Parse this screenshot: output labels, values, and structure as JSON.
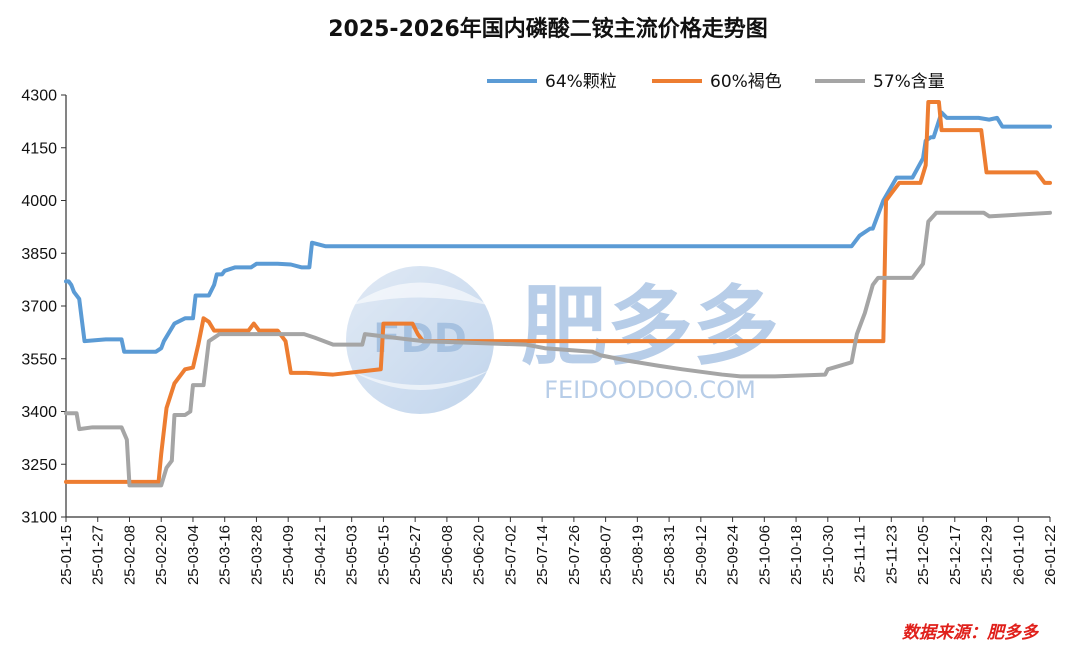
{
  "chart_data": {
    "type": "line",
    "title": "2025-2026年国内磷酸二铵主流价格走势图",
    "xlabel": "",
    "ylabel": "",
    "ylim": [
      3100,
      4300
    ],
    "yticks": [
      3100,
      3250,
      3400,
      3550,
      3700,
      3850,
      4000,
      4150,
      4300
    ],
    "x_start": "2025-01-15",
    "x_end": "2026-01-22",
    "x_tick_labels": [
      "25-01-15",
      "25-01-27",
      "25-02-08",
      "25-02-20",
      "25-03-04",
      "25-03-16",
      "25-03-28",
      "25-04-09",
      "25-04-21",
      "25-05-03",
      "25-05-15",
      "25-05-27",
      "25-06-08",
      "25-06-20",
      "25-07-02",
      "25-07-14",
      "25-07-26",
      "25-08-07",
      "25-08-19",
      "25-08-31",
      "25-09-12",
      "25-09-24",
      "25-10-06",
      "25-10-18",
      "25-10-30",
      "25-11-11",
      "25-11-23",
      "25-12-05",
      "25-12-17",
      "25-12-29",
      "26-01-10",
      "26-01-22"
    ],
    "legend_position": "top-right",
    "grid": false,
    "series": [
      {
        "name": "64%颗粒",
        "color": "#5b9bd5",
        "x": [
          "2025-01-15",
          "2025-01-16",
          "2025-01-17",
          "2025-01-18",
          "2025-01-20",
          "2025-01-21",
          "2025-01-22",
          "2025-01-30",
          "2025-02-05",
          "2025-02-06",
          "2025-02-18",
          "2025-02-20",
          "2025-02-21",
          "2025-02-25",
          "2025-03-01",
          "2025-03-04",
          "2025-03-05",
          "2025-03-10",
          "2025-03-12",
          "2025-03-13",
          "2025-03-15",
          "2025-03-16",
          "2025-03-20",
          "2025-03-26",
          "2025-03-28",
          "2025-04-05",
          "2025-04-10",
          "2025-04-14",
          "2025-04-17",
          "2025-04-18",
          "2025-04-23",
          "2025-11-08",
          "2025-11-11",
          "2025-11-15",
          "2025-11-16",
          "2025-11-20",
          "2025-11-25",
          "2025-11-28",
          "2025-12-01",
          "2025-12-05",
          "2025-12-06",
          "2025-12-08",
          "2025-12-09",
          "2025-12-12",
          "2025-12-14",
          "2025-12-26",
          "2025-12-30",
          "2026-01-02",
          "2026-01-04",
          "2026-01-22"
        ],
        "values": [
          3770,
          3770,
          3760,
          3740,
          3720,
          3660,
          3600,
          3605,
          3605,
          3570,
          3570,
          3580,
          3600,
          3650,
          3665,
          3665,
          3730,
          3730,
          3760,
          3790,
          3790,
          3800,
          3810,
          3810,
          3820,
          3820,
          3818,
          3810,
          3810,
          3880,
          3870,
          3870,
          3900,
          3920,
          3920,
          4000,
          4065,
          4065,
          4065,
          4120,
          4170,
          4180,
          4180,
          4250,
          4235,
          4235,
          4230,
          4235,
          4210,
          4210
        ]
      },
      {
        "name": "60%褐色",
        "color": "#ed7d31",
        "x": [
          "2025-01-15",
          "2025-02-19",
          "2025-02-20",
          "2025-02-22",
          "2025-02-25",
          "2025-03-01",
          "2025-03-04",
          "2025-03-06",
          "2025-03-08",
          "2025-03-10",
          "2025-03-12",
          "2025-03-16",
          "2025-03-25",
          "2025-03-27",
          "2025-03-29",
          "2025-04-05",
          "2025-04-08",
          "2025-04-10",
          "2025-04-16",
          "2025-04-26",
          "2025-05-14",
          "2025-05-15",
          "2025-05-26",
          "2025-05-28",
          "2025-05-30",
          "2025-11-20",
          "2025-11-21",
          "2025-11-23",
          "2025-11-26",
          "2025-12-04",
          "2025-12-06",
          "2025-12-07",
          "2025-12-11",
          "2025-12-12",
          "2025-12-27",
          "2025-12-29",
          "2026-01-17",
          "2026-01-20",
          "2026-01-22"
        ],
        "values": [
          3200,
          3200,
          3280,
          3410,
          3480,
          3520,
          3525,
          3590,
          3665,
          3655,
          3630,
          3630,
          3630,
          3650,
          3630,
          3630,
          3600,
          3510,
          3510,
          3505,
          3520,
          3650,
          3650,
          3620,
          3600,
          3600,
          4000,
          4020,
          4050,
          4050,
          4100,
          4280,
          4280,
          4200,
          4200,
          4080,
          4080,
          4050,
          4050
        ]
      },
      {
        "name": "57%含量",
        "color": "#a5a5a5",
        "x": [
          "2025-01-15",
          "2025-01-19",
          "2025-01-20",
          "2025-01-25",
          "2025-02-05",
          "2025-02-07",
          "2025-02-08",
          "2025-02-19",
          "2025-02-20",
          "2025-02-22",
          "2025-02-24",
          "2025-02-25",
          "2025-03-01",
          "2025-03-03",
          "2025-03-04",
          "2025-03-08",
          "2025-03-10",
          "2025-03-12",
          "2025-03-14",
          "2025-04-15",
          "2025-04-19",
          "2025-04-26",
          "2025-05-07",
          "2025-05-08",
          "2025-05-30",
          "2025-07-08",
          "2025-07-15",
          "2025-08-02",
          "2025-08-05",
          "2025-08-15",
          "2025-08-27",
          "2025-09-05",
          "2025-09-20",
          "2025-09-27",
          "2025-10-10",
          "2025-10-29",
          "2025-10-30",
          "2025-11-08",
          "2025-11-10",
          "2025-11-13",
          "2025-11-16",
          "2025-11-18",
          "2025-11-20",
          "2025-11-23",
          "2025-12-01",
          "2025-12-03",
          "2025-12-05",
          "2025-12-07",
          "2025-12-10",
          "2025-12-28",
          "2025-12-30",
          "2026-01-22"
        ],
        "values": [
          3395,
          3395,
          3350,
          3355,
          3355,
          3320,
          3190,
          3190,
          3190,
          3240,
          3260,
          3390,
          3390,
          3400,
          3475,
          3475,
          3600,
          3610,
          3620,
          3620,
          3610,
          3590,
          3590,
          3620,
          3600,
          3590,
          3580,
          3570,
          3560,
          3545,
          3530,
          3520,
          3505,
          3500,
          3500,
          3505,
          3520,
          3540,
          3620,
          3680,
          3760,
          3780,
          3780,
          3780,
          3780,
          3800,
          3820,
          3940,
          3965,
          3965,
          3955,
          3965
        ]
      }
    ]
  },
  "watermark": {
    "brand_cn": "肥多多",
    "brand_en": "FEIDOODOO.COM",
    "logo_text": "FDD"
  },
  "source_note": "数据来源：肥多多"
}
